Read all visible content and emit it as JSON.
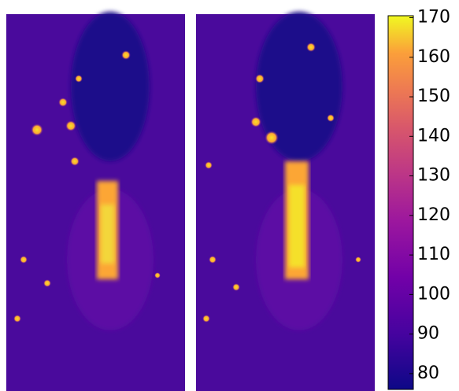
{
  "chart_data": {
    "type": "heatmap",
    "colorbar": {
      "lim": [
        76,
        170.5
      ],
      "ticks": [
        80,
        90,
        100,
        110,
        120,
        130,
        140,
        150,
        160,
        170
      ]
    }
  }
}
